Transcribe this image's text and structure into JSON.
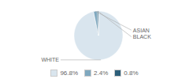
{
  "chart_data": {
    "type": "pie",
    "categories": [
      "WHITE",
      "ASIAN",
      "BLACK"
    ],
    "values": [
      96.8,
      2.4,
      0.8
    ],
    "value_labels": [
      "96.8%",
      "2.4%",
      "0.8%"
    ],
    "colors": [
      "#d9e5ee",
      "#7fa8bf",
      "#2d5f7a"
    ],
    "legend": "bottom"
  }
}
